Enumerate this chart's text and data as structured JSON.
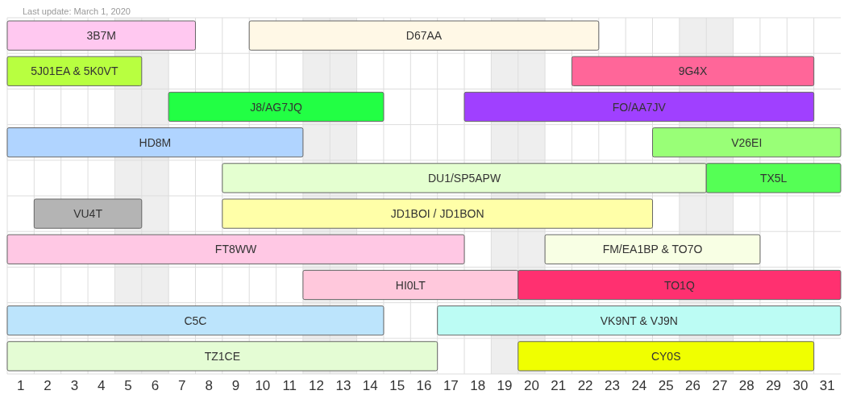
{
  "chart_data": {
    "type": "bar",
    "orientation": "horizontal",
    "annotations": [
      "Last update: March 1, 2020"
    ],
    "categories": [
      null,
      null,
      null,
      null,
      null,
      null,
      null,
      null,
      null,
      null
    ],
    "xlim": [
      0.5,
      31.5
    ],
    "xticks": [
      1,
      {
        "value": 1.5,
        "label": null
      },
      2,
      {
        "value": 2.5,
        "label": null
      },
      3,
      {
        "value": 3.5,
        "label": null
      },
      4,
      {
        "value": 4.5,
        "label": null
      },
      5,
      {
        "value": 5.5,
        "label": null
      },
      6,
      {
        "value": 6.5,
        "label": null
      },
      7,
      {
        "value": 7.5,
        "label": null
      },
      8,
      {
        "value": 8.5,
        "label": null
      },
      9,
      {
        "value": 9.5,
        "label": null
      },
      10,
      {
        "value": 10.5,
        "label": null
      },
      11,
      {
        "value": 11.5,
        "label": null
      },
      12,
      {
        "value": 12.5,
        "label": null
      },
      13,
      {
        "value": 13.5,
        "label": null
      },
      14,
      {
        "value": 14.5,
        "label": null
      },
      15,
      {
        "value": 15.5,
        "label": null
      },
      16,
      {
        "value": 16.5,
        "label": null
      },
      17,
      {
        "value": 17.5,
        "label": null
      },
      18,
      {
        "value": 18.5,
        "label": null
      },
      19,
      {
        "value": 19.5,
        "label": null
      },
      20,
      {
        "value": 20.5,
        "label": null
      },
      21,
      {
        "value": 21.5,
        "label": null
      },
      22,
      {
        "value": 22.5,
        "label": null
      },
      23,
      {
        "value": 23.5,
        "label": null
      },
      24,
      {
        "value": 24.5,
        "label": null
      },
      25,
      {
        "value": 25.5,
        "label": null
      },
      26,
      {
        "value": 26.5,
        "label": null
      },
      27,
      {
        "value": 27.5,
        "label": null
      },
      28,
      {
        "value": 28.5,
        "label": null
      },
      29,
      {
        "value": 29.5,
        "label": null
      },
      30,
      {
        "value": 30.5,
        "label": null
      },
      31
    ],
    "grid": true,
    "bands": [
      {
        "axis": "x",
        "from": 4.5,
        "to": 6.5,
        "color": "#eeeeee"
      },
      {
        "axis": "x",
        "from": 11.5,
        "to": 13.5,
        "color": "#eeeeee"
      },
      {
        "axis": "x",
        "from": 18.5,
        "to": 20.5,
        "color": "#eeeeee"
      },
      {
        "axis": "x",
        "from": 25.5,
        "to": 27.5,
        "color": "#eeeeee"
      }
    ],
    "series": [
      {
        "name": "3B7M",
        "color": "#ffc8f0",
        "base": [
          0.5,
          null,
          null,
          null,
          null,
          null,
          null,
          null,
          null,
          null
        ],
        "values": [
          7,
          null,
          null,
          null,
          null,
          null,
          null,
          null,
          null,
          null
        ]
      },
      {
        "name": "D67AA",
        "color": "#fff8e6",
        "base": [
          9.5,
          null,
          null,
          null,
          null,
          null,
          null,
          null,
          null,
          null
        ],
        "values": [
          13,
          null,
          null,
          null,
          null,
          null,
          null,
          null,
          null,
          null
        ]
      },
      {
        "name": "5J01EA & 5K0VT",
        "color": "#b8ff40",
        "base": [
          null,
          0.5,
          null,
          null,
          null,
          null,
          null,
          null,
          null,
          null
        ],
        "values": [
          null,
          5,
          null,
          null,
          null,
          null,
          null,
          null,
          null,
          null
        ]
      },
      {
        "name": "9G4X",
        "color": "#ff6699",
        "base": [
          null,
          21.5,
          null,
          null,
          null,
          null,
          null,
          null,
          null,
          null
        ],
        "values": [
          null,
          9,
          null,
          null,
          null,
          null,
          null,
          null,
          null,
          null
        ]
      },
      {
        "name": "J8/AG7JQ",
        "color": "#22ff44",
        "base": [
          null,
          null,
          6.5,
          null,
          null,
          null,
          null,
          null,
          null,
          null
        ],
        "values": [
          null,
          null,
          8,
          null,
          null,
          null,
          null,
          null,
          null,
          null
        ]
      },
      {
        "name": "FO/AA7JV",
        "color": "#a040ff",
        "base": [
          null,
          null,
          17.5,
          null,
          null,
          null,
          null,
          null,
          null,
          null
        ],
        "values": [
          null,
          null,
          13,
          null,
          null,
          null,
          null,
          null,
          null,
          null
        ]
      },
      {
        "name": "HD8M",
        "color": "#b0d4ff",
        "base": [
          null,
          null,
          null,
          0.5,
          null,
          null,
          null,
          null,
          null,
          null
        ],
        "values": [
          null,
          null,
          null,
          11,
          null,
          null,
          null,
          null,
          null,
          null
        ]
      },
      {
        "name": "V26EI",
        "color": "#99ff77",
        "base": [
          null,
          null,
          null,
          24.5,
          null,
          null,
          null,
          null,
          null,
          null
        ],
        "values": [
          null,
          null,
          null,
          7,
          null,
          null,
          null,
          null,
          null,
          null
        ]
      },
      {
        "name": "DU1/SP5APW",
        "color": "#e4ffd0",
        "base": [
          null,
          null,
          null,
          null,
          8.5,
          null,
          null,
          null,
          null,
          null
        ],
        "values": [
          null,
          null,
          null,
          null,
          18,
          null,
          null,
          null,
          null,
          null
        ]
      },
      {
        "name": "TX5L",
        "color": "#55ff55",
        "base": [
          null,
          null,
          null,
          null,
          26.5,
          null,
          null,
          null,
          null,
          null
        ],
        "values": [
          null,
          null,
          null,
          null,
          5,
          null,
          null,
          null,
          null,
          null
        ]
      },
      {
        "name": "VU4T",
        "color": "#b4b4b4",
        "base": [
          null,
          null,
          null,
          null,
          null,
          1.5,
          null,
          null,
          null,
          null
        ],
        "values": [
          null,
          null,
          null,
          null,
          null,
          4,
          null,
          null,
          null,
          null
        ]
      },
      {
        "name": "JD1BOI / JD1BON",
        "color": "#ffffa8",
        "base": [
          null,
          null,
          null,
          null,
          null,
          8.5,
          null,
          null,
          null,
          null
        ],
        "values": [
          null,
          null,
          null,
          null,
          null,
          16,
          null,
          null,
          null,
          null
        ]
      },
      {
        "name": "FT8WW",
        "color": "#ffc8e4",
        "base": [
          null,
          null,
          null,
          null,
          null,
          null,
          0.5,
          null,
          null,
          null
        ],
        "values": [
          null,
          null,
          null,
          null,
          null,
          null,
          17,
          null,
          null,
          null
        ]
      },
      {
        "name": "FM/EA1BP & TO7O",
        "color": "#f8ffe4",
        "base": [
          null,
          null,
          null,
          null,
          null,
          null,
          20.5,
          null,
          null,
          null
        ],
        "values": [
          null,
          null,
          null,
          null,
          null,
          null,
          8,
          null,
          null,
          null
        ]
      },
      {
        "name": "HI0LT",
        "color": "#ffc8dc",
        "base": [
          null,
          null,
          null,
          null,
          null,
          null,
          null,
          11.5,
          null,
          null
        ],
        "values": [
          null,
          null,
          null,
          null,
          null,
          null,
          null,
          8,
          null,
          null
        ]
      },
      {
        "name": "TO1Q",
        "color": "#ff3070",
        "base": [
          null,
          null,
          null,
          null,
          null,
          null,
          null,
          19.5,
          null,
          null
        ],
        "values": [
          null,
          null,
          null,
          null,
          null,
          null,
          null,
          12,
          null,
          null
        ]
      },
      {
        "name": "C5C",
        "color": "#bce4fc",
        "base": [
          null,
          null,
          null,
          null,
          null,
          null,
          null,
          null,
          0.5,
          null
        ],
        "values": [
          null,
          null,
          null,
          null,
          null,
          null,
          null,
          null,
          14,
          null
        ]
      },
      {
        "name": "VK9NT & VJ9N",
        "color": "#bcfcf4",
        "base": [
          null,
          null,
          null,
          null,
          null,
          null,
          null,
          null,
          16.5,
          null
        ],
        "values": [
          null,
          null,
          null,
          null,
          null,
          null,
          null,
          null,
          15,
          null
        ]
      },
      {
        "name": "TZ1CE",
        "color": "#e4fcd4",
        "base": [
          null,
          null,
          null,
          null,
          null,
          null,
          null,
          null,
          null,
          0.5
        ],
        "values": [
          null,
          null,
          null,
          null,
          null,
          null,
          null,
          null,
          null,
          16
        ]
      },
      {
        "name": "CY0S",
        "color": "#f0ff00",
        "base": [
          null,
          null,
          null,
          null,
          null,
          null,
          null,
          null,
          null,
          19.5
        ],
        "values": [
          null,
          null,
          null,
          null,
          null,
          null,
          null,
          null,
          null,
          11
        ]
      }
    ]
  }
}
